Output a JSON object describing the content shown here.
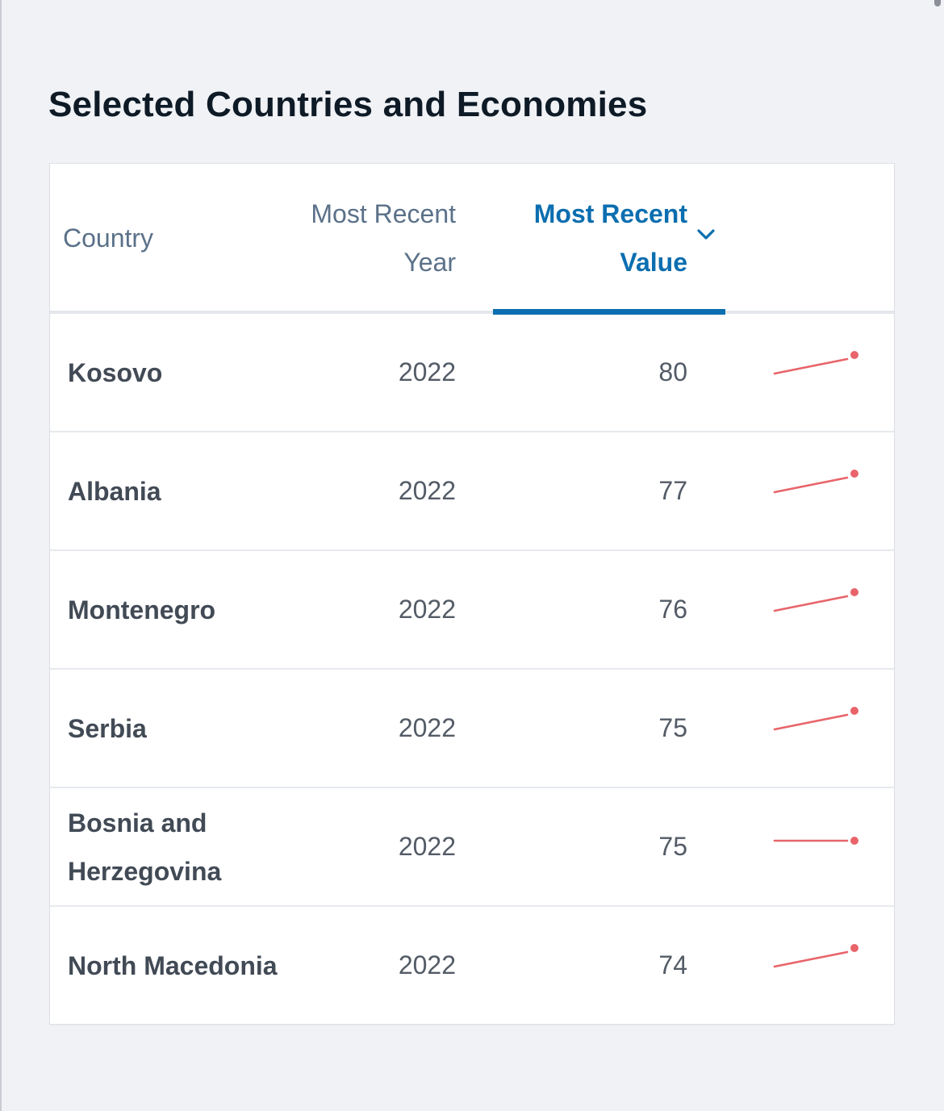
{
  "section": {
    "title": "Selected Countries and Economies"
  },
  "table": {
    "columns": {
      "country": "Country",
      "year": "Most Recent Year",
      "value": "Most Recent Value"
    },
    "sort": {
      "column": "value",
      "direction": "descending",
      "icon": "chevron-down-icon"
    },
    "rows": [
      {
        "country": "Kosovo",
        "year": "2022",
        "value": "80",
        "trend": "rising"
      },
      {
        "country": "Albania",
        "year": "2022",
        "value": "77",
        "trend": "rising"
      },
      {
        "country": "Montenegro",
        "year": "2022",
        "value": "76",
        "trend": "rising"
      },
      {
        "country": "Serbia",
        "year": "2022",
        "value": "75",
        "trend": "rising"
      },
      {
        "country": "Bosnia and Herzegovina",
        "year": "2022",
        "value": "75",
        "trend": "flat"
      },
      {
        "country": "North Macedonia",
        "year": "2022",
        "value": "74",
        "trend": "rising"
      }
    ]
  },
  "colors": {
    "accent": "#0b6eb0",
    "sparkline": "#e8646a",
    "title": "#0e1a26",
    "header_text": "#5b7189",
    "body_text": "#414a55"
  }
}
